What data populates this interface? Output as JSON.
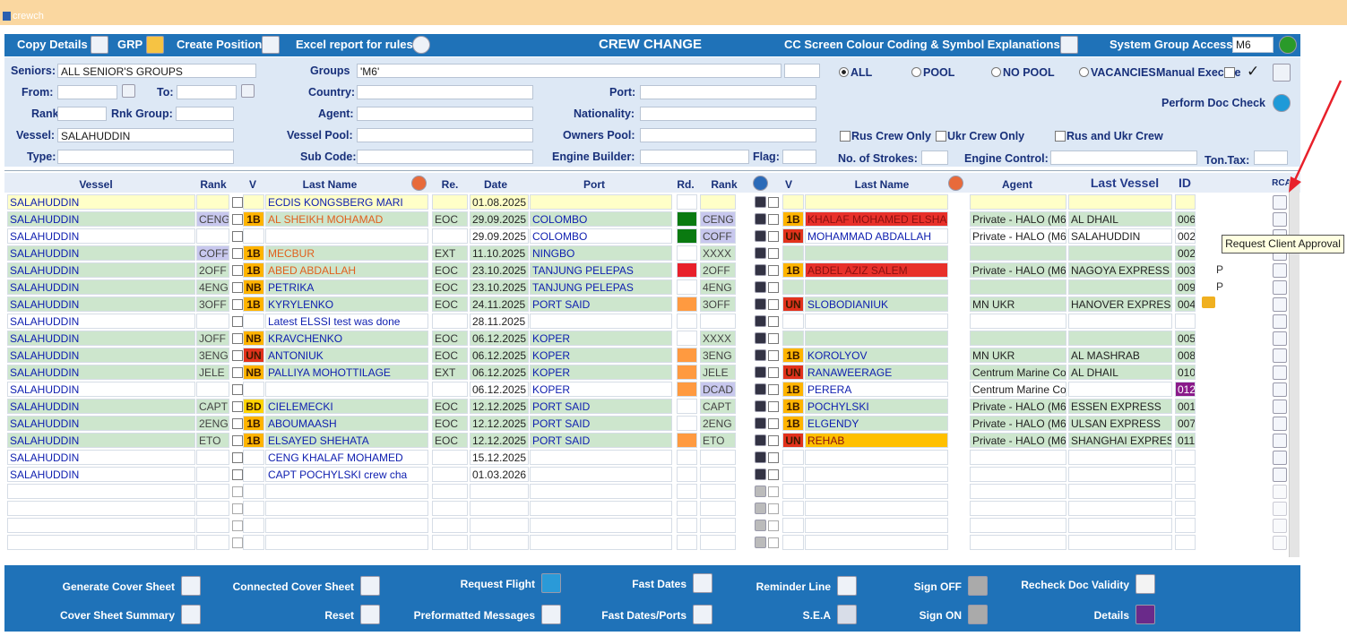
{
  "window": {
    "title": "crewch"
  },
  "toolbar": {
    "copy_details": "Copy Details",
    "grp": "GRP",
    "create_position": "Create Position",
    "excel_report": "Excel report for rules",
    "title": "CREW CHANGE",
    "legend": "CC Screen Colour Coding & Symbol Explanations",
    "access_label": "System Group Access:",
    "access_value": "M6"
  },
  "filters": {
    "seniors": {
      "label": "Seniors:",
      "value": "ALL SENIOR'S GROUPS"
    },
    "groups": {
      "label": "Groups",
      "value": "'M6'"
    },
    "pool_options": [
      "ALL",
      "POOL",
      "NO POOL",
      "VACANCIES"
    ],
    "manual_execute": "Manual Execute",
    "from": "From:",
    "to": "To:",
    "country": "Country:",
    "port": "Port:",
    "doc_check": "Perform Doc Check",
    "rank": "Rank:",
    "rnk_group": "Rnk Group:",
    "agent": "Agent:",
    "nationality": "Nationality:",
    "vessel": {
      "label": "Vessel:",
      "value": "SALAHUDDIN"
    },
    "vessel_pool": "Vessel Pool:",
    "owners_pool": "Owners Pool:",
    "crew_options": [
      "Rus Crew Only",
      "Ukr Crew Only",
      "Rus and Ukr Crew"
    ],
    "type": "Type:",
    "sub_code": "Sub Code:",
    "engine_builder": "Engine Builder:",
    "flag": "Flag:",
    "strokes": "No. of Strokes:",
    "engine_control": "Engine Control:",
    "ton_tax": "Ton.Tax:"
  },
  "table": {
    "headers": [
      "Vessel",
      "Rank",
      "V",
      "Last Name",
      "Re.",
      "Date",
      "Port",
      "Rd.",
      "Rank",
      "V",
      "Last Name",
      "Agent",
      "Last Vessel",
      "ID",
      "RCA"
    ],
    "badge_colors": {
      "1B": "#ffb400",
      "NB": "#ffb400",
      "UN": "#e2321c",
      "BD": "#ffd400"
    },
    "rows": [
      {
        "vessel": "SALAHUDDIN",
        "name": "ECDIS KONGSBERG MARI",
        "date": "01.08.2025",
        "bg": "#ffffc8"
      },
      {
        "vessel": "SALAHUDDIN",
        "rank": "CENG",
        "v": "1B",
        "name": "AL SHEIKH MOHAMAD",
        "re": "EOC",
        "date": "29.09.2025",
        "port": "COLOMBO",
        "rd": "#0a7a10",
        "rank2": "CENG",
        "v2": "1B",
        "name2": "KHALAF MOHAMED ELSHA",
        "agent": "Private - HALO (M6",
        "last_vessel": "AL DHAIL",
        "id": "006",
        "bg": "#cde6cd",
        "rank_bg": "#c8c8ee",
        "rank2_bg": "#c8c8ee",
        "name_color": "#e0601e",
        "name2_bg": "#e8302a"
      },
      {
        "vessel": "SALAHUDDIN",
        "date": "29.09.2025",
        "port": "COLOMBO",
        "rd": "#0a7a10",
        "rank2": "COFF",
        "v2": "UN",
        "name2": "MOHAMMAD ABDALLAH",
        "agent": "Private - HALO (M6",
        "last_vessel": "SALAHUDDIN",
        "id": "002",
        "bg": "#ffffff",
        "rank2_bg": "#c8c8ee"
      },
      {
        "vessel": "SALAHUDDIN",
        "rank": "COFF",
        "v": "1B",
        "name": "MECBUR",
        "re": "EXT",
        "date": "11.10.2025",
        "port": "NINGBO",
        "rank2": "XXXX",
        "id": "002",
        "bg": "#cde6cd",
        "rank_bg": "#c8c8ee",
        "name_color": "#e0601e"
      },
      {
        "vessel": "SALAHUDDIN",
        "rank": "2OFF",
        "v": "1B",
        "name": "ABED ABDALLAH",
        "re": "EOC",
        "date": "23.10.2025",
        "port": "TANJUNG PELEPAS",
        "rd": "#e8202a",
        "rank2": "2OFF",
        "v2": "1B",
        "name2": "ABDEL AZIZ SALEM",
        "agent": "Private - HALO (M6",
        "last_vessel": "NAGOYA EXPRESS",
        "id": "003",
        "note": "P",
        "bg": "#cde6cd",
        "name_color": "#e0601e",
        "name2_bg": "#e8302a"
      },
      {
        "vessel": "SALAHUDDIN",
        "rank": "4ENG",
        "v": "NB",
        "name": "PETRIKA",
        "re": "EOC",
        "date": "23.10.2025",
        "port": "TANJUNG PELEPAS",
        "rank2": "4ENG",
        "id": "009",
        "note": "P",
        "bg": "#cde6cd"
      },
      {
        "vessel": "SALAHUDDIN",
        "rank": "3OFF",
        "v": "1B",
        "name": "KYRYLENKO",
        "re": "EOC",
        "date": "24.11.2025",
        "port": "PORT SAID",
        "rd": "#ff9a40",
        "rank2": "3OFF",
        "v2": "UN",
        "name2": "SLOBODIANIUK",
        "agent": "MN UKR",
        "last_vessel": "HANOVER EXPRES",
        "id": "004",
        "bg": "#cde6cd"
      },
      {
        "vessel": "SALAHUDDIN",
        "name": "Latest ELSSI test was done",
        "date": "28.11.2025",
        "bg": "#ffffff"
      },
      {
        "vessel": "SALAHUDDIN",
        "rank": "JOFF",
        "v": "NB",
        "name": "KRAVCHENKO",
        "re": "EOC",
        "date": "06.12.2025",
        "port": "KOPER",
        "rank2": "XXXX",
        "id": "005",
        "bg": "#cde6cd"
      },
      {
        "vessel": "SALAHUDDIN",
        "rank": "3ENG",
        "v": "UN",
        "name": "ANTONIUK",
        "re": "EOC",
        "date": "06.12.2025",
        "port": "KOPER",
        "rd": "#ff9a40",
        "rank2": "3ENG",
        "v2": "1B",
        "name2": "KOROLYOV",
        "agent": "MN UKR",
        "last_vessel": "AL MASHRAB",
        "id": "008",
        "bg": "#cde6cd"
      },
      {
        "vessel": "SALAHUDDIN",
        "rank": "JELE",
        "v": "NB",
        "name": "PALLIYA MOHOTTILAGE",
        "re": "EXT",
        "date": "06.12.2025",
        "port": "KOPER",
        "rd": "#ff9a40",
        "rank2": "JELE",
        "v2": "UN",
        "name2": "RANAWEERAGE",
        "agent": "Centrum Marine Co",
        "last_vessel": "AL DHAIL",
        "id": "010",
        "bg": "#cde6cd"
      },
      {
        "vessel": "SALAHUDDIN",
        "date": "06.12.2025",
        "port": "KOPER",
        "rd": "#ff9a40",
        "rank2": "DCAD",
        "v2": "1B",
        "name2": "PERERA",
        "agent": "Centrum Marine Co",
        "id": "012",
        "bg": "#ffffff",
        "rank2_bg": "#c8c8ee",
        "id_bg": "#8a1a8a"
      },
      {
        "vessel": "SALAHUDDIN",
        "rank": "CAPT",
        "v": "BD",
        "name": "CIELEMECKI",
        "re": "EOC",
        "date": "12.12.2025",
        "port": "PORT SAID",
        "rank2": "CAPT",
        "v2": "1B",
        "name2": "POCHYLSKI",
        "agent": "Private - HALO (M6",
        "last_vessel": "ESSEN EXPRESS",
        "id": "001",
        "bg": "#cde6cd"
      },
      {
        "vessel": "SALAHUDDIN",
        "rank": "2ENG",
        "v": "1B",
        "name": "ABOUMAASH",
        "re": "EOC",
        "date": "12.12.2025",
        "port": "PORT SAID",
        "rank2": "2ENG",
        "v2": "1B",
        "name2": "ELGENDY",
        "agent": "Private - HALO (M6",
        "last_vessel": "ULSAN EXPRESS",
        "id": "007",
        "bg": "#cde6cd"
      },
      {
        "vessel": "SALAHUDDIN",
        "rank": "ETO",
        "v": "1B",
        "name": "ELSAYED SHEHATA",
        "re": "EOC",
        "date": "12.12.2025",
        "port": "PORT SAID",
        "rd": "#ff9a40",
        "rank2": "ETO",
        "v2": "UN",
        "name2": "REHAB",
        "agent": "Private - HALO (M6",
        "last_vessel": "SHANGHAI EXPRES",
        "id": "011",
        "bg": "#cde6cd",
        "name2_bg": "#ffc000"
      },
      {
        "vessel": "SALAHUDDIN",
        "name": "CENG KHALAF MOHAMED",
        "date": "15.12.2025",
        "bg": "#ffffff"
      },
      {
        "vessel": "SALAHUDDIN",
        "name": "CAPT POCHYLSKI crew cha",
        "date": "01.03.2026",
        "bg": "#ffffff"
      }
    ]
  },
  "footer": {
    "generate_cover_sheet": "Generate Cover Sheet",
    "connected_cover_sheet": "Connected Cover Sheet",
    "request_flight": "Request Flight",
    "fast_dates": "Fast Dates",
    "reminder_line": "Reminder Line",
    "sign_off": "Sign OFF",
    "recheck_doc_validity": "Recheck Doc Validity",
    "cover_sheet_summary": "Cover Sheet Summary",
    "reset": "Reset",
    "preformatted_messages": "Preformatted Messages",
    "fast_dates_ports": "Fast Dates/Ports",
    "sea": "S.E.A",
    "sign_on": "Sign ON",
    "details": "Details"
  },
  "tooltip": "Request Client Approval"
}
